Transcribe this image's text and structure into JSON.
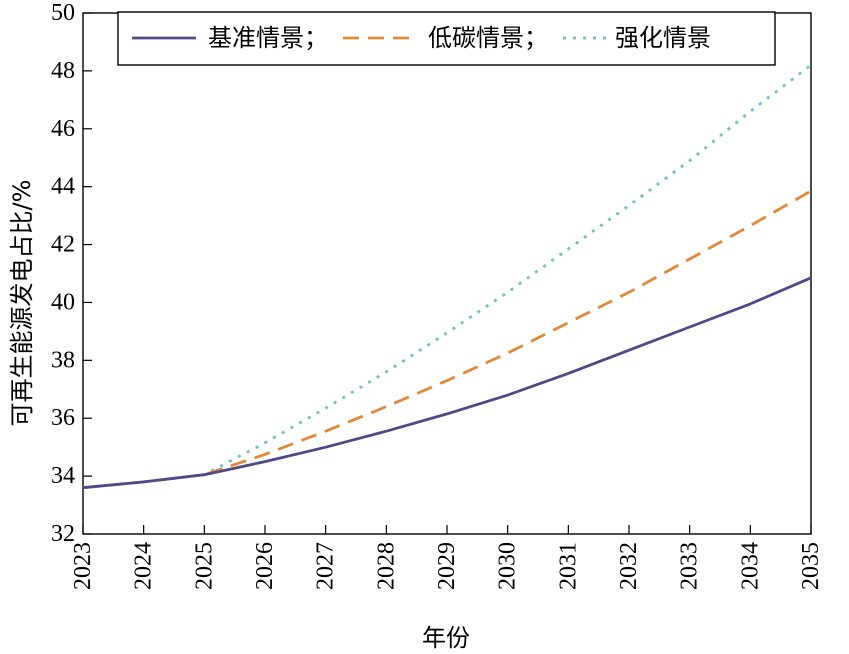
{
  "chart_data": {
    "type": "line",
    "xlabel": "年份",
    "ylabel": "可再生能源发电占比/%",
    "xlim": [
      2023,
      2035
    ],
    "ylim": [
      32,
      50
    ],
    "x_ticks": [
      "2023",
      "2024",
      "2025",
      "2026",
      "2027",
      "2028",
      "2029",
      "2030",
      "2031",
      "2032",
      "2033",
      "2034",
      "2035"
    ],
    "y_ticks": [
      "32",
      "34",
      "36",
      "38",
      "40",
      "42",
      "44",
      "46",
      "48",
      "50"
    ],
    "grid": false,
    "legend_position": "top",
    "series": [
      {
        "name": "基准情景；",
        "color": "#4f4a85",
        "style": "solid",
        "x": [
          2023,
          2024,
          2025,
          2026,
          2027,
          2028,
          2029,
          2030,
          2031,
          2032,
          2033,
          2034,
          2035
        ],
        "values": [
          33.6,
          33.8,
          34.05,
          34.5,
          35.0,
          35.55,
          36.15,
          36.8,
          37.55,
          38.35,
          39.15,
          39.95,
          40.85
        ]
      },
      {
        "name": "低碳情景；",
        "color": "#e0883a",
        "style": "dashed",
        "x": [
          2023,
          2024,
          2025,
          2026,
          2027,
          2028,
          2029,
          2030,
          2031,
          2032,
          2033,
          2034,
          2035
        ],
        "values": [
          33.6,
          33.8,
          34.05,
          34.75,
          35.55,
          36.4,
          37.3,
          38.25,
          39.3,
          40.35,
          41.5,
          42.65,
          43.85
        ]
      },
      {
        "name": "强化情景",
        "color": "#6fbfbf",
        "style": "dotted",
        "x": [
          2023,
          2024,
          2025,
          2026,
          2027,
          2028,
          2029,
          2030,
          2031,
          2032,
          2033,
          2034,
          2035
        ],
        "values": [
          33.6,
          33.8,
          34.05,
          35.15,
          36.35,
          37.6,
          38.95,
          40.35,
          41.85,
          43.35,
          44.9,
          46.6,
          48.2
        ]
      }
    ]
  }
}
